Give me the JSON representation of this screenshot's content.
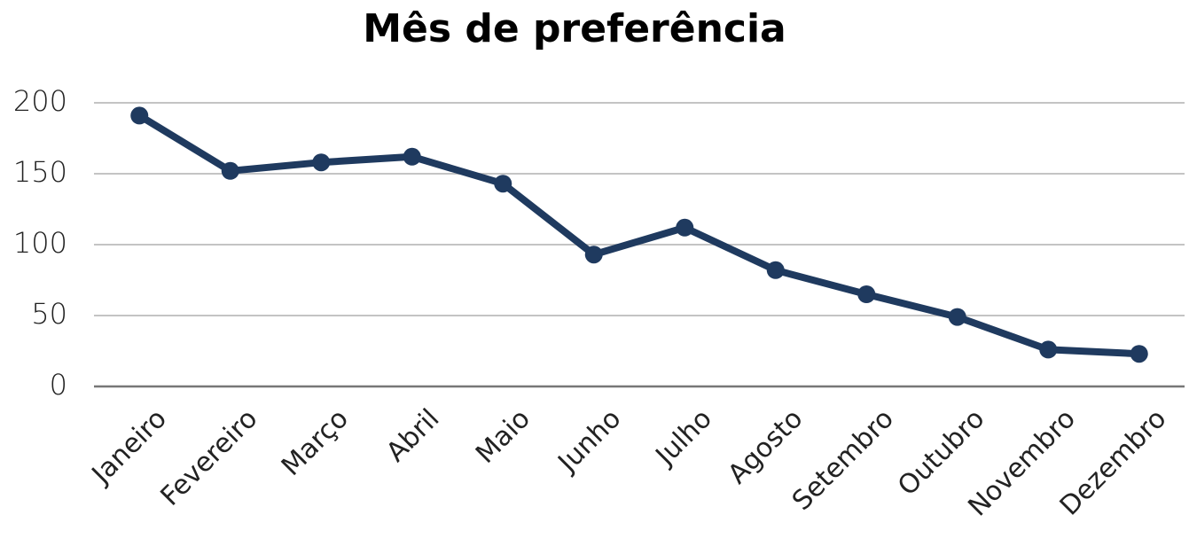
{
  "chart_data": {
    "type": "line",
    "title": "Mês de preferência",
    "categories": [
      "Janeiro",
      "Fevereiro",
      "Março",
      "Abril",
      "Maio",
      "Junho",
      "Julho",
      "Agosto",
      "Setembro",
      "Outubro",
      "Novembro",
      "Dezembro"
    ],
    "values": [
      191,
      152,
      158,
      162,
      143,
      93,
      112,
      82,
      65,
      49,
      26,
      23
    ],
    "color": "#1f3a5f",
    "ylim": [
      0,
      200
    ],
    "yticks": [
      0,
      50,
      100,
      150,
      200
    ],
    "grid": true
  }
}
